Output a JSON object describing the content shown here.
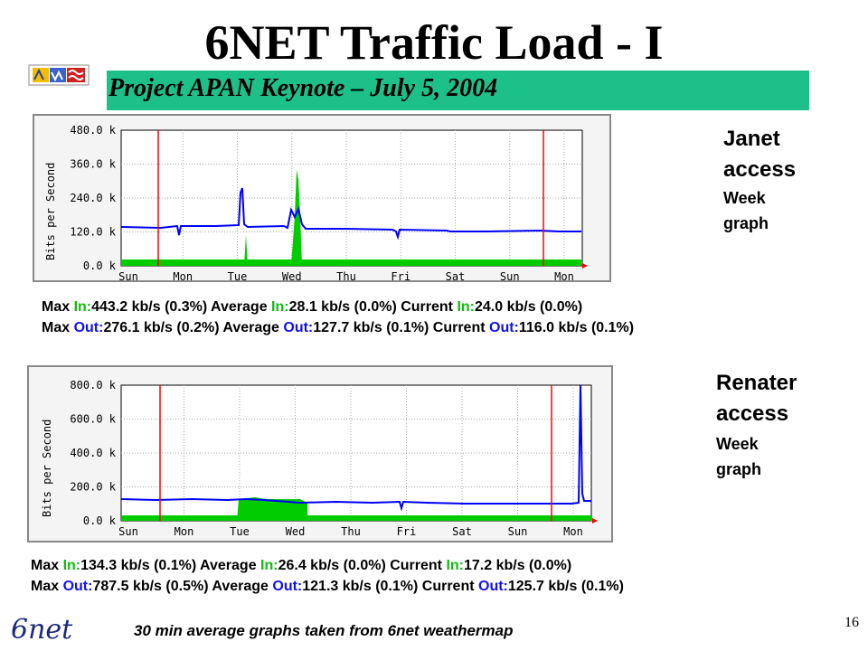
{
  "slide": {
    "title": "6NET Traffic Load - I",
    "subtitle": "Project APAN Keynote – July 5, 2004",
    "ist_logo_text": "Information Society Technologies",
    "net_logo_text": "6net",
    "footer": "30 min average graphs taken from 6net weathermap",
    "page_number": "16"
  },
  "colors": {
    "banner": "#1ec08a",
    "in_series": "#00cc00",
    "out_series": "#0000ff",
    "marker": "#ff0000"
  },
  "graphs": [
    {
      "label_line1": "Janet",
      "label_line2": "access",
      "label_line3": "Week",
      "label_line4": "graph",
      "ylabel": "Bits per Second",
      "yticks": [
        "480.0 k",
        "360.0 k",
        "240.0 k",
        "120.0 k",
        "0.0 k"
      ],
      "xticks": [
        "Sun",
        "Mon",
        "Tue",
        "Wed",
        "Thu",
        "Fri",
        "Sat",
        "Sun",
        "Mon"
      ],
      "stats_rows": [
        {
          "a": "Max ",
          "b": "In:",
          "c": "443.2 kb/s (0.3%) Average ",
          "d": "In:",
          "e": "28.1 kb/s (0.0%) Current ",
          "f": "In:",
          "g": "24.0 kb/s (0.0%)"
        },
        {
          "a": "Max ",
          "b": "Out:",
          "c": "276.1 kb/s (0.2%) Average ",
          "d": "Out:",
          "e": "127.7 kb/s (0.1%) Current ",
          "f": "Out:",
          "g": "116.0 kb/s (0.1%)"
        }
      ]
    },
    {
      "label_line1": "Renater",
      "label_line2": "access",
      "label_line3": "Week",
      "label_line4": "graph",
      "ylabel": "Bits per Second",
      "yticks": [
        "800.0 k",
        "600.0 k",
        "400.0 k",
        "200.0 k",
        "0.0 k"
      ],
      "xticks": [
        "Sun",
        "Mon",
        "Tue",
        "Wed",
        "Thu",
        "Fri",
        "Sat",
        "Sun",
        "Mon"
      ],
      "stats_rows": [
        {
          "a": "Max ",
          "b": "In:",
          "c": "134.3 kb/s (0.1%) Average ",
          "d": "In:",
          "e": "26.4 kb/s (0.0%) Current ",
          "f": "In:",
          "g": "17.2 kb/s (0.0%)"
        },
        {
          "a": "Max ",
          "b": "Out:",
          "c": "787.5 kb/s (0.5%) Average ",
          "d": "Out:",
          "e": "121.3 kb/s (0.1%) Current ",
          "f": "Out:",
          "g": "125.7 kb/s (0.1%)"
        }
      ]
    }
  ]
}
